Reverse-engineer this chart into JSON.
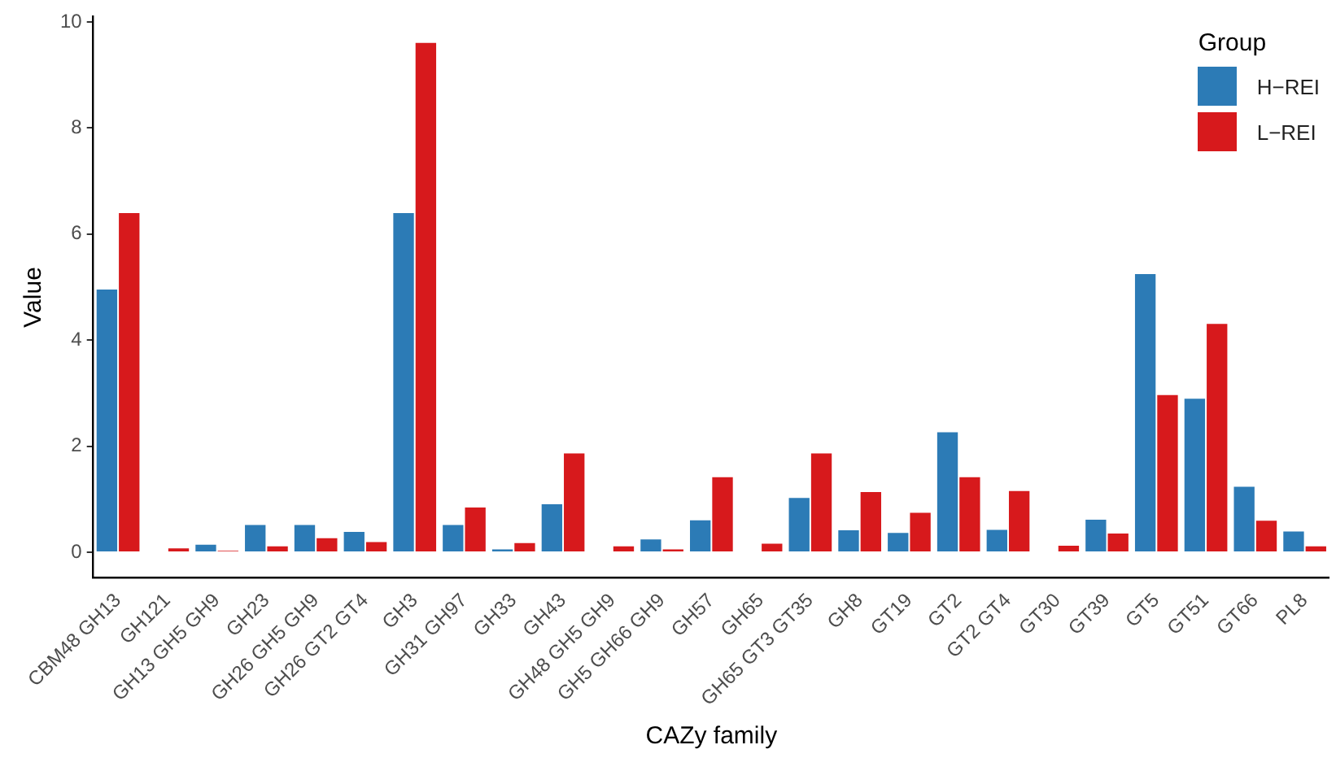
{
  "chart_data": {
    "type": "bar",
    "xlabel": "CAZy family",
    "ylabel": "Value",
    "legend_title": "Group",
    "legend": "top right",
    "grid": false,
    "categories": [
      "CBM48 GH13",
      "GH121",
      "GH13 GH5 GH9",
      "GH23",
      "GH26 GH5 GH9",
      "GH26 GT2 GT4",
      "GH3",
      "GH31 GH97",
      "GH33",
      "GH43",
      "GH48 GH5 GH9",
      "GH5 GH66 GH9",
      "GH57",
      "GH65",
      "GH65 GT3 GT35",
      "GH8",
      "GT19",
      "GT2",
      "GT2 GT4",
      "GT30",
      "GT39",
      "GT5",
      "GT51",
      "GT66",
      "PL8"
    ],
    "series": [
      {
        "name": "H−REI",
        "color": "#2c7bb6",
        "values": [
          4.97,
          null,
          0.16,
          0.53,
          0.53,
          0.4,
          6.41,
          0.53,
          0.07,
          0.92,
          null,
          0.26,
          0.62,
          null,
          1.04,
          0.43,
          0.38,
          2.28,
          0.44,
          null,
          0.63,
          5.26,
          2.91,
          1.25,
          0.41
        ]
      },
      {
        "name": "L−REI",
        "color": "#d7191c",
        "values": [
          6.41,
          0.09,
          0.04,
          0.13,
          0.28,
          0.21,
          9.62,
          0.86,
          0.19,
          1.88,
          0.13,
          0.07,
          1.43,
          0.18,
          1.88,
          1.15,
          0.76,
          1.43,
          1.17,
          0.14,
          0.37,
          2.98,
          4.32,
          0.61,
          0.13
        ]
      }
    ],
    "ylim": [
      -0.48,
      10.1
    ],
    "yticks": [
      0,
      2,
      4,
      6,
      8,
      10
    ]
  }
}
